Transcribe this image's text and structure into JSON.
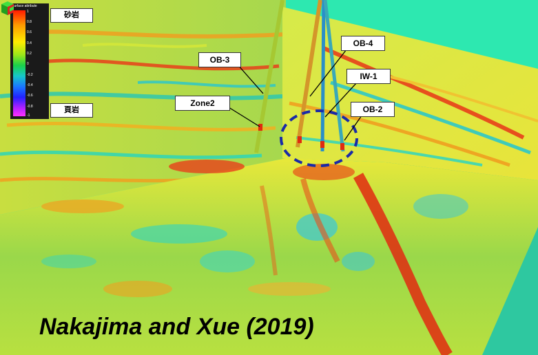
{
  "colorbar": {
    "title": "Surface attribute",
    "ticks": [
      "1",
      "0.8",
      "0.6",
      "0.4",
      "0.2",
      "0",
      "-0.2",
      "-0.4",
      "-0.6",
      "-0.8",
      "-1"
    ],
    "top_label": "砂岩",
    "bottom_label": "頁岩"
  },
  "wells": [
    {
      "name": "OB-3",
      "color": "#a6c832"
    },
    {
      "name": "OB-4",
      "color": "#d4962a"
    },
    {
      "name": "IW-1",
      "color": "#2a8fc8"
    },
    {
      "name": "OB-2",
      "color": "#3aa8b8"
    }
  ],
  "zone_label": "Zone2",
  "citation": "Nakajima and Xue (2019)",
  "colors": {
    "sky": "#2de8b0",
    "highlight_circle": "#1a2aa8",
    "anomaly_red": "#e02a10"
  },
  "icons": [
    "orientation-cube-icon"
  ]
}
